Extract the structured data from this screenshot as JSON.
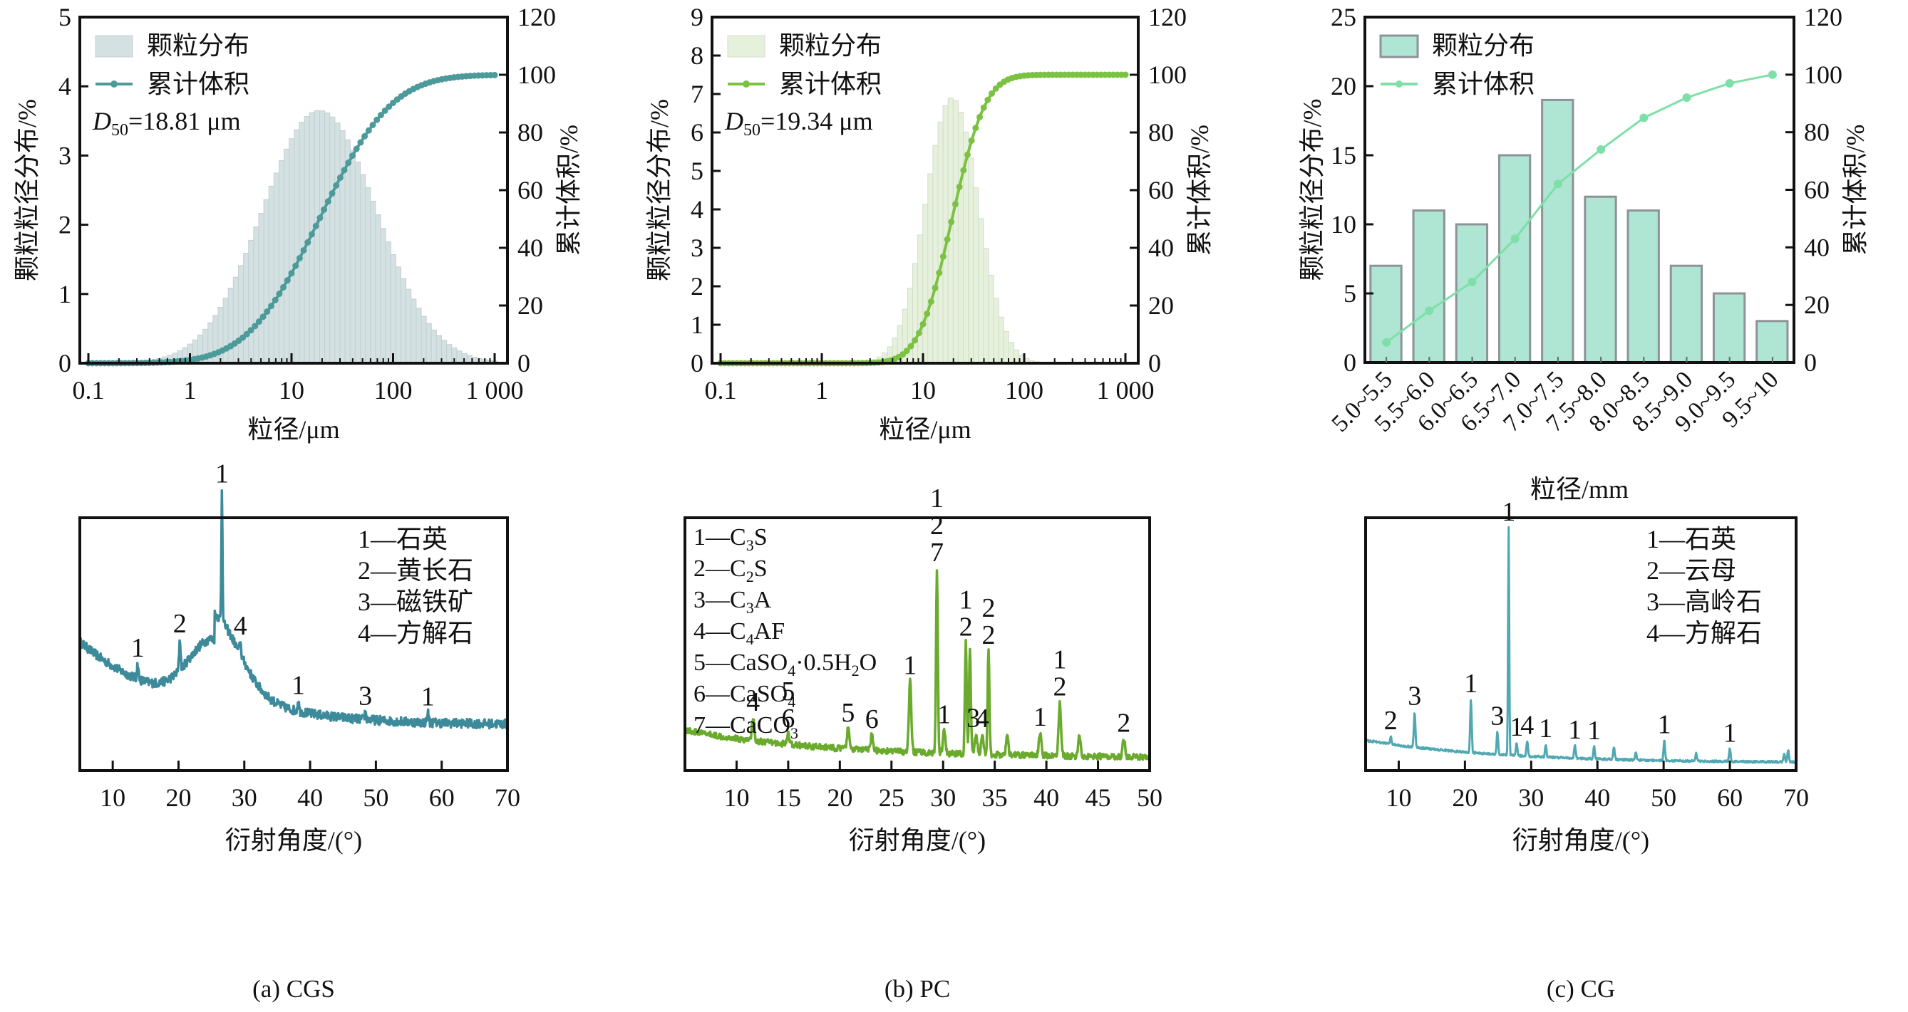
{
  "figure": {
    "captions": [
      "(a) CGS",
      "(b) PC",
      "(c) CG"
    ]
  },
  "chart_data": [
    {
      "id": "psd-a",
      "type": "bar",
      "sample": "CGS",
      "title": "",
      "xlabel": "粒径/μm",
      "ylabel": "颗粒粒径分布/%",
      "y2label": "累计体积/%",
      "xscale": "log",
      "xlim": [
        0.1,
        1000
      ],
      "ylim": [
        0,
        5
      ],
      "y2lim": [
        0,
        120
      ],
      "xticks": [
        0.1,
        1,
        10,
        100,
        1000
      ],
      "xtick_labels": [
        "0.1",
        "1",
        "10",
        "100",
        "1 000"
      ],
      "yticks": [
        0,
        1,
        2,
        3,
        4,
        5
      ],
      "y2ticks": [
        0,
        20,
        40,
        60,
        80,
        100,
        120
      ],
      "legend": {
        "position": "top-left",
        "entries": [
          "颗粒分布",
          "累计体积"
        ]
      },
      "annotation": {
        "label": "D",
        "sub": "50",
        "text": "=18.81 μm"
      },
      "distribution": {
        "model": "lognormal",
        "median_um": 18.81,
        "peak_percent": 3.65,
        "range_um": [
          0.3,
          1000
        ],
        "bins_per_decade": 20
      },
      "colors": {
        "bar": "#d3e1e2",
        "bar_edge": "#c4cfd1",
        "line": "#4d9a9a"
      }
    },
    {
      "id": "psd-b",
      "type": "bar",
      "sample": "PC",
      "title": "",
      "xlabel": "粒径/μm",
      "ylabel": "颗粒粒径分布/%",
      "y2label": "累计体积/%",
      "xscale": "log",
      "xlim": [
        0.1,
        1000
      ],
      "ylim": [
        0,
        9
      ],
      "y2lim": [
        0,
        120
      ],
      "xticks": [
        0.1,
        1,
        10,
        100,
        1000
      ],
      "xtick_labels": [
        "0.1",
        "1",
        "10",
        "100",
        "1 000"
      ],
      "yticks": [
        0,
        1,
        2,
        3,
        4,
        5,
        6,
        7,
        8,
        9
      ],
      "y2ticks": [
        0,
        20,
        40,
        60,
        80,
        100,
        120
      ],
      "legend": {
        "position": "top-left",
        "entries": [
          "颗粒分布",
          "累计体积"
        ]
      },
      "annotation": {
        "label": "D",
        "sub": "50",
        "text": "=19.34 μm"
      },
      "distribution": {
        "model": "lognormal",
        "median_um": 19.34,
        "peak_percent": 6.9,
        "range_um": [
          2.5,
          250
        ],
        "bins_per_decade": 20
      },
      "colors": {
        "bar": "#e6f1dc",
        "bar_edge": "#d4dccd",
        "line": "#7cc242"
      }
    },
    {
      "id": "psd-c",
      "type": "bar",
      "sample": "CG",
      "title": "",
      "xlabel": "粒径/mm",
      "ylabel": "颗粒粒径分布/%",
      "y2label": "累计体积/%",
      "categories": [
        "5.0~5.5",
        "5.5~6.0",
        "6.0~6.5",
        "6.5~7.0",
        "7.0~7.5",
        "7.5~8.0",
        "8.0~8.5",
        "8.5~9.0",
        "9.0~9.5",
        "9.5~10"
      ],
      "values": [
        7,
        11,
        10,
        15,
        19,
        12,
        11,
        7,
        5,
        3
      ],
      "cumulative": [
        7,
        18,
        28,
        43,
        62,
        74,
        85,
        92,
        97,
        100
      ],
      "ylim": [
        0,
        25
      ],
      "y2lim": [
        0,
        120
      ],
      "yticks": [
        0,
        5,
        10,
        15,
        20,
        25
      ],
      "y2ticks": [
        0,
        20,
        40,
        60,
        80,
        100,
        120
      ],
      "legend": {
        "position": "top-left",
        "entries": [
          "颗粒分布",
          "累计体积"
        ]
      },
      "colors": {
        "bar": "#aee5d3",
        "bar_edge": "#8e9299",
        "line": "#7ee0a8"
      }
    },
    {
      "id": "xrd-a",
      "type": "line",
      "sample": "CGS",
      "caption": "(a) CGS",
      "xlabel": "衍射角度/(°)",
      "ylabel": "",
      "xlim": [
        5,
        70
      ],
      "xticks": [
        10,
        20,
        30,
        40,
        50,
        60,
        70
      ],
      "legend": {
        "position": "top-right",
        "entries": [
          "1—石英",
          "2—黄长石",
          "3—磁铁矿",
          "4—方解石"
        ]
      },
      "background": {
        "type": "amorphous-hump",
        "start": 0.51,
        "min_at": 11.5,
        "min": 0.38,
        "hump_center": 25.5,
        "hump_height": 0.56,
        "end": 0.18
      },
      "peaks": [
        {
          "x": 13.8,
          "h": 0.06,
          "label": "1"
        },
        {
          "x": 20.2,
          "h": 0.12,
          "label": "2"
        },
        {
          "x": 26.6,
          "h": 0.52,
          "label": "1"
        },
        {
          "x": 29.4,
          "h": 0.05,
          "label": "4"
        },
        {
          "x": 38.2,
          "h": 0.04,
          "label": "1"
        },
        {
          "x": 48.4,
          "h": 0.03,
          "label": "3"
        },
        {
          "x": 57.9,
          "h": 0.04,
          "label": "1"
        }
      ],
      "color": "#3c8a9a"
    },
    {
      "id": "xrd-b",
      "type": "line",
      "sample": "PC",
      "caption": "(b) PC",
      "xlabel": "衍射角度/(°)",
      "ylabel": "",
      "xlim": [
        5,
        50
      ],
      "xticks": [
        10,
        15,
        20,
        25,
        30,
        35,
        40,
        45,
        50
      ],
      "legend": {
        "position": "top-left",
        "entries": [
          {
            "num": "1",
            "parts": [
              [
                "C",
                ""
              ],
              [
                "3",
                "sub"
              ],
              [
                "S",
                ""
              ]
            ]
          },
          {
            "num": "2",
            "parts": [
              [
                "C",
                ""
              ],
              [
                "2",
                "sub"
              ],
              [
                "S",
                ""
              ]
            ]
          },
          {
            "num": "3",
            "parts": [
              [
                "C",
                ""
              ],
              [
                "3",
                "sub"
              ],
              [
                "A",
                ""
              ]
            ]
          },
          {
            "num": "4",
            "parts": [
              [
                "C",
                ""
              ],
              [
                "4",
                "sub"
              ],
              [
                "AF",
                ""
              ]
            ]
          },
          {
            "num": "5",
            "parts": [
              [
                "CaSO",
                ""
              ],
              [
                "4",
                "sub"
              ],
              [
                "·0.5H",
                ""
              ],
              [
                "2",
                "sub"
              ],
              [
                "O",
                ""
              ]
            ]
          },
          {
            "num": "6",
            "parts": [
              [
                "CaSO",
                ""
              ],
              [
                "4",
                "sub"
              ]
            ]
          },
          {
            "num": "7",
            "parts": [
              [
                "CaCO",
                ""
              ],
              [
                "3",
                "sub"
              ]
            ]
          }
        ]
      },
      "background": {
        "type": "decay",
        "start": 0.16,
        "end": 0.05
      },
      "peaks": [
        {
          "x": 11.6,
          "h": 0.09,
          "label": "4"
        },
        {
          "x": 15.0,
          "h": 0.04,
          "label": "5\n6"
        },
        {
          "x": 20.8,
          "h": 0.08,
          "label": "5"
        },
        {
          "x": 23.1,
          "h": 0.06,
          "label": "6"
        },
        {
          "x": 26.8,
          "h": 0.28,
          "label": "1"
        },
        {
          "x": 29.4,
          "h": 0.73,
          "label": "1\n2\n7"
        },
        {
          "x": 30.1,
          "h": 0.09,
          "label": "1"
        },
        {
          "x": 32.2,
          "h": 0.44,
          "label": "1\n2"
        },
        {
          "x": 32.6,
          "h": 0.42,
          "label": ""
        },
        {
          "x": 33.2,
          "h": 0.08,
          "label": "3"
        },
        {
          "x": 33.8,
          "h": 0.08,
          "label": "4"
        },
        {
          "x": 34.4,
          "h": 0.41,
          "label": "2\n2"
        },
        {
          "x": 36.2,
          "h": 0.07,
          "label": ""
        },
        {
          "x": 39.4,
          "h": 0.09,
          "label": "1"
        },
        {
          "x": 41.3,
          "h": 0.21,
          "label": "1\n2"
        },
        {
          "x": 43.2,
          "h": 0.08,
          "label": ""
        },
        {
          "x": 47.5,
          "h": 0.07,
          "label": "2"
        }
      ],
      "color": "#6aaa2c"
    },
    {
      "id": "xrd-c",
      "type": "line",
      "sample": "CG",
      "caption": "(c) CG",
      "xlabel": "衍射角度/(°)",
      "ylabel": "",
      "xlim": [
        5,
        70
      ],
      "xticks": [
        10,
        20,
        30,
        40,
        50,
        60,
        70
      ],
      "legend": {
        "position": "top-right",
        "entries": [
          "1—石英",
          "2—云母",
          "3—高岭石",
          "4—方解石"
        ]
      },
      "background": {
        "type": "decay",
        "start": 0.12,
        "end": 0.03
      },
      "peaks": [
        {
          "x": 8.8,
          "h": 0.03,
          "label": "2"
        },
        {
          "x": 12.4,
          "h": 0.14,
          "label": "3"
        },
        {
          "x": 20.9,
          "h": 0.21,
          "label": "1"
        },
        {
          "x": 24.9,
          "h": 0.09,
          "label": "3"
        },
        {
          "x": 26.6,
          "h": 0.9,
          "label": "1"
        },
        {
          "x": 27.8,
          "h": 0.05,
          "label": "1"
        },
        {
          "x": 29.4,
          "h": 0.06,
          "label": "4"
        },
        {
          "x": 32.2,
          "h": 0.05,
          "label": "1"
        },
        {
          "x": 36.6,
          "h": 0.05,
          "label": "1"
        },
        {
          "x": 39.5,
          "h": 0.05,
          "label": "1"
        },
        {
          "x": 42.5,
          "h": 0.05,
          "label": ""
        },
        {
          "x": 45.8,
          "h": 0.03,
          "label": ""
        },
        {
          "x": 50.1,
          "h": 0.08,
          "label": "1"
        },
        {
          "x": 54.9,
          "h": 0.03,
          "label": ""
        },
        {
          "x": 60.0,
          "h": 0.05,
          "label": "1"
        },
        {
          "x": 68.2,
          "h": 0.03,
          "label": ""
        },
        {
          "x": 68.8,
          "h": 0.05,
          "label": ""
        }
      ],
      "color": "#4fa8b2"
    }
  ]
}
